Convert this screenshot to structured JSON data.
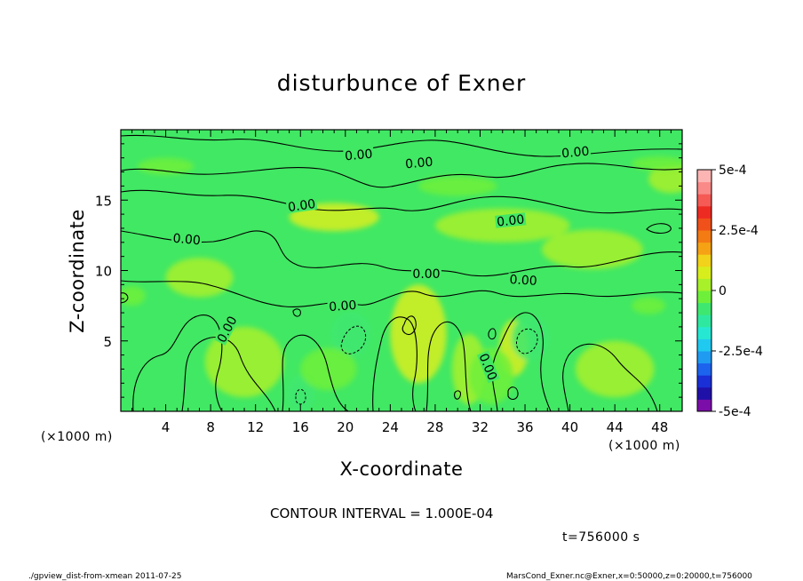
{
  "chart_data": {
    "type": "heatmap",
    "title": "disturbunce of Exner",
    "xlabel": "X-coordinate",
    "ylabel": "Z-coordinate",
    "x_unit": "(×1000 m)",
    "y_unit": "(×1000 m)",
    "x_ticks": [
      "4",
      "8",
      "12",
      "16",
      "20",
      "24",
      "28",
      "32",
      "36",
      "40",
      "44",
      "48"
    ],
    "x_tick_values": [
      4,
      8,
      12,
      16,
      20,
      24,
      28,
      32,
      36,
      40,
      44,
      48
    ],
    "y_ticks": [
      "5",
      "10",
      "15"
    ],
    "y_tick_values": [
      5,
      10,
      15
    ],
    "xlim": [
      0,
      50
    ],
    "ylim": [
      0,
      20
    ],
    "colorbar": {
      "ticks": [
        "5e-4",
        "2.5e-4",
        "0",
        "-2.5e-4",
        "-5e-4"
      ],
      "tick_values": [
        0.0005,
        0.00025,
        0,
        -0.00025,
        -0.0005
      ],
      "range": [
        -0.0005,
        0.0005
      ],
      "levels_colors": [
        "#7b0ea8",
        "#1f10a8",
        "#1a2fd6",
        "#1c63ee",
        "#1f9bf2",
        "#20c9f0",
        "#26e8d2",
        "#2fe8a0",
        "#3ee870",
        "#6ef03a",
        "#a8f02a",
        "#d8ee1c",
        "#f2d21a",
        "#f5a215",
        "#f47a14",
        "#f0501a",
        "#ee2b22",
        "#f55a55",
        "#f98a88",
        "#fcb5b3"
      ]
    },
    "contour_interval": "CONTOUR INTERVAL = 1.000E-04",
    "contour_labels": [
      "0.00",
      "0.00",
      "0.00",
      "0.00",
      "0.00",
      "0.00",
      "0.00",
      "0.00",
      "0.00",
      "0.00",
      "0.00"
    ],
    "blobs": [
      {
        "x": 19,
        "z": 13.8,
        "rx": 4,
        "rz": 1.0,
        "level": 5e-05
      },
      {
        "x": 34,
        "z": 13.2,
        "rx": 6,
        "rz": 1.2,
        "level": 4e-05
      },
      {
        "x": 11,
        "z": 3.5,
        "rx": 3.5,
        "rz": 2.5,
        "level": 4e-05
      },
      {
        "x": 26.5,
        "z": 5.5,
        "rx": 2.5,
        "rz": 3.5,
        "level": 6e-05
      },
      {
        "x": 35,
        "z": 4.5,
        "rx": 1.3,
        "rz": 2.0,
        "level": 5e-05
      },
      {
        "x": 31,
        "z": 3.0,
        "rx": 1.5,
        "rz": 2.5,
        "level": 4e-05
      },
      {
        "x": 44,
        "z": 3.0,
        "rx": 3.5,
        "rz": 2.0,
        "level": 3e-05
      },
      {
        "x": 42,
        "z": 11.5,
        "rx": 4.5,
        "rz": 1.4,
        "level": 4e-05
      },
      {
        "x": 7,
        "z": 9.5,
        "rx": 3,
        "rz": 1.4,
        "level": 3e-05
      },
      {
        "x": 49,
        "z": 16.5,
        "rx": 2,
        "rz": 1.0,
        "level": 4e-05
      },
      {
        "x": 20.5,
        "z": 5.5,
        "rx": 1.8,
        "rz": 1.6,
        "level": -8e-05
      },
      {
        "x": 36.5,
        "z": 5.2,
        "rx": 1.7,
        "rz": 1.6,
        "level": -9e-05
      },
      {
        "x": 16,
        "z": 1.2,
        "rx": 1.3,
        "rz": 1.3,
        "level": -7e-05
      },
      {
        "x": 18.5,
        "z": 3.0,
        "rx": 2.5,
        "rz": 1.5,
        "level": -3e-05
      },
      {
        "x": 33,
        "z": 2.5,
        "rx": 2.0,
        "rz": 2.0,
        "level": -3e-05
      },
      {
        "x": 1,
        "z": 8.2,
        "rx": 1.2,
        "rz": 0.7,
        "level": -4e-05
      },
      {
        "x": 4,
        "z": 17.4,
        "rx": 2.5,
        "rz": 0.6,
        "level": -2e-05
      },
      {
        "x": 30,
        "z": 16.0,
        "rx": 3.5,
        "rz": 0.7,
        "level": -2e-05
      },
      {
        "x": 48,
        "z": 17.6,
        "rx": 2.5,
        "rz": 0.5,
        "level": -2e-05
      },
      {
        "x": 47,
        "z": 7.5,
        "rx": 1.5,
        "rz": 0.6,
        "level": -2e-05
      }
    ],
    "grid": false,
    "legend_placement": "right"
  },
  "figure": {
    "time_note": "t=756000 s",
    "footer_left": "./gpview_dist-from-xmean  2011-07-25",
    "footer_right": "MarsCond_Exner.nc@Exner,x=0:50000,z=0:20000,t=756000"
  }
}
